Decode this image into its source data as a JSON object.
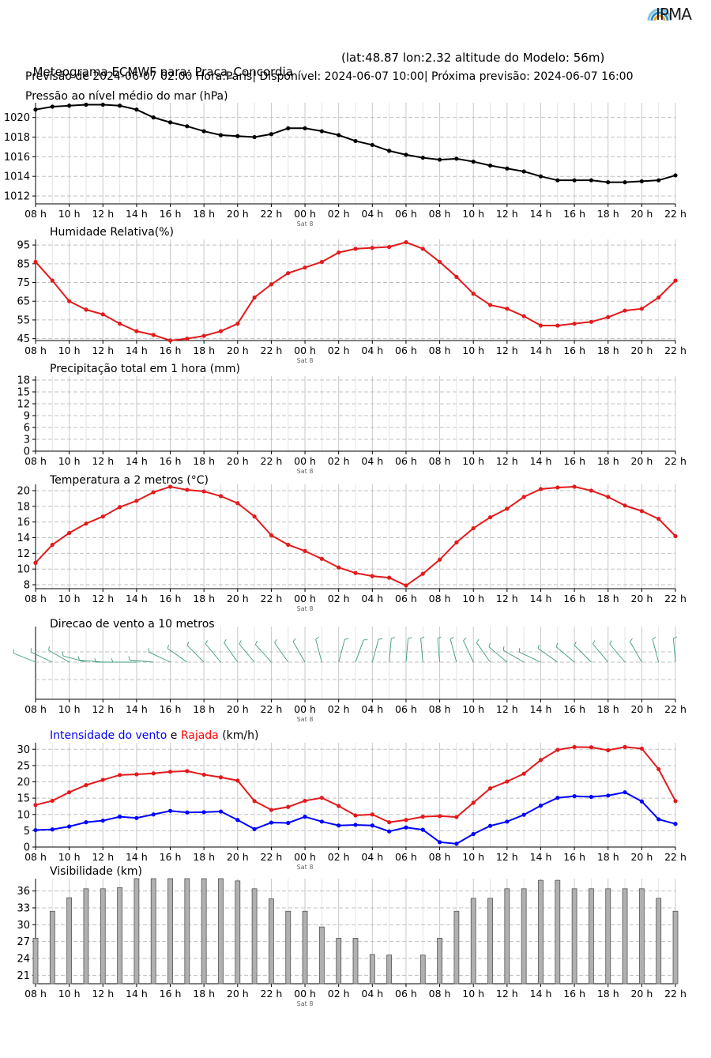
{
  "header": {
    "logo_text": "IPMA",
    "title": "Meteograma ECMWF para: Praca_Concordia",
    "coords": "(lat:48.87 lon:2.32 altitude do Modelo: 56m)",
    "subtitle": "Previsão de 2024-06-07 02:00 Hora:Paris| Disponível: 2024-06-07 10:00| Próxima previsão: 2024-06-07 16:00"
  },
  "time_axis": {
    "tick_labels": [
      "08 h",
      "10 h",
      "12 h",
      "14 h",
      "16 h",
      "18 h",
      "20 h",
      "22 h",
      "00 h",
      "02 h",
      "04 h",
      "06 h",
      "08 h",
      "10 h",
      "12 h",
      "14 h",
      "16 h",
      "18 h",
      "20 h",
      "22 h"
    ],
    "day_label": "Sat 8"
  },
  "chart_data": [
    {
      "id": "pressure",
      "type": "line",
      "title": "Pressão ao nível médio do mar (hPa)",
      "x": [
        0,
        1,
        2,
        3,
        4,
        5,
        6,
        7,
        8,
        9,
        10,
        11,
        12,
        13,
        14,
        15,
        16,
        17,
        18,
        19,
        20,
        21,
        22,
        23,
        24,
        25,
        26,
        27,
        28,
        29,
        30,
        31,
        32,
        33,
        34,
        35,
        36,
        37,
        38
      ],
      "yticks": [
        1012,
        1014,
        1016,
        1018,
        1020
      ],
      "ylim": [
        1011.2,
        1021.5
      ],
      "color": "#000000",
      "series": [
        {
          "values": [
            1020.8,
            1021.1,
            1021.2,
            1021.3,
            1021.3,
            1021.2,
            1020.8,
            1020.0,
            1019.5,
            1019.1,
            1018.6,
            1018.2,
            1018.1,
            1018.0,
            1018.3,
            1018.9,
            1018.9,
            1018.6,
            1018.2,
            1017.6,
            1017.2,
            1016.6,
            1016.2,
            1015.9,
            1015.7,
            1015.8,
            1015.5,
            1015.1,
            1014.8,
            1014.5,
            1014.0,
            1013.6,
            1013.6,
            1013.6,
            1013.4,
            1013.4,
            1013.5,
            1013.6,
            1014.1
          ]
        }
      ]
    },
    {
      "id": "humidity",
      "type": "line",
      "title": "Humidade Relativa(%)",
      "x": [
        0,
        1,
        2,
        3,
        4,
        5,
        6,
        7,
        8,
        9,
        10,
        11,
        12,
        13,
        14,
        15,
        16,
        17,
        18,
        19,
        20,
        21,
        22,
        23,
        24,
        25,
        26,
        27,
        28,
        29,
        30,
        31,
        32,
        33,
        34,
        35,
        36,
        37,
        38
      ],
      "yticks": [
        45,
        55,
        65,
        75,
        85,
        95
      ],
      "ylim": [
        44,
        98
      ],
      "color": "#e31a1c",
      "series": [
        {
          "values": [
            86,
            76,
            65,
            60.5,
            58,
            53,
            49,
            47,
            44,
            45,
            46.5,
            49,
            53,
            67,
            74,
            80,
            83,
            86,
            91,
            93,
            93.5,
            94,
            96.5,
            93,
            86,
            78,
            69,
            63,
            61,
            57,
            52,
            52,
            53,
            54,
            56.5,
            60,
            61,
            67,
            76
          ]
        }
      ]
    },
    {
      "id": "precip",
      "type": "bar",
      "title": "Precipitação total em 1 hora (mm)",
      "x": [
        0,
        1,
        2,
        3,
        4,
        5,
        6,
        7,
        8,
        9,
        10,
        11,
        12,
        13,
        14,
        15,
        16,
        17,
        18,
        19,
        20,
        21,
        22,
        23,
        24,
        25,
        26,
        27,
        28,
        29,
        30,
        31,
        32,
        33,
        34,
        35,
        36,
        37,
        38
      ],
      "yticks": [
        0,
        3,
        6,
        9,
        12,
        15,
        18
      ],
      "ylim": [
        0,
        19
      ],
      "color": "#1f78b4",
      "series": [
        {
          "values": [
            0,
            0,
            0,
            0,
            0,
            0,
            0,
            0,
            0,
            0,
            0,
            0,
            0,
            0,
            0,
            0,
            0,
            0,
            0,
            0,
            0,
            0,
            0,
            0,
            0,
            0,
            0,
            0,
            0,
            0,
            0,
            0,
            0,
            0,
            0,
            0,
            0,
            0,
            0
          ]
        }
      ]
    },
    {
      "id": "temperature",
      "type": "line",
      "title": "Temperatura a 2 metros (°C)",
      "x": [
        0,
        1,
        2,
        3,
        4,
        5,
        6,
        7,
        8,
        9,
        10,
        11,
        12,
        13,
        14,
        15,
        16,
        17,
        18,
        19,
        20,
        21,
        22,
        23,
        24,
        25,
        26,
        27,
        28,
        29,
        30,
        31,
        32,
        33,
        34,
        35,
        36,
        37,
        38
      ],
      "yticks": [
        8,
        10,
        12,
        14,
        16,
        18,
        20
      ],
      "ylim": [
        7.5,
        20.8
      ],
      "color": "#e31a1c",
      "series": [
        {
          "values": [
            10.8,
            13.1,
            14.6,
            15.8,
            16.7,
            17.9,
            18.7,
            19.8,
            20.5,
            20.1,
            19.9,
            19.3,
            18.4,
            16.7,
            14.3,
            13.1,
            12.3,
            11.3,
            10.2,
            9.5,
            9.1,
            8.9,
            7.9,
            9.4,
            11.2,
            13.4,
            15.2,
            16.6,
            17.7,
            19.2,
            20.2,
            20.4,
            20.5,
            20.0,
            19.2,
            18.1,
            17.4,
            16.4,
            14.2
          ]
        }
      ]
    },
    {
      "id": "wind_direction",
      "type": "scatter",
      "title": "Direcao de vento a 10 metros",
      "x": [
        0,
        1,
        2,
        3,
        4,
        5,
        6,
        7,
        8,
        9,
        10,
        11,
        12,
        13,
        14,
        15,
        16,
        17,
        18,
        19,
        20,
        21,
        22,
        23,
        24,
        25,
        26,
        27,
        28,
        29,
        30,
        31,
        32,
        33,
        34,
        35,
        36,
        37,
        38
      ],
      "color": "#3c9a7c",
      "series": [
        {
          "name": "direction_deg",
          "values": [
            292,
            295,
            300,
            285,
            275,
            270,
            270,
            275,
            295,
            305,
            315,
            320,
            325,
            320,
            318,
            325,
            330,
            345,
            15,
            20,
            15,
            5,
            5,
            355,
            355,
            345,
            335,
            325,
            310,
            300,
            295,
            305,
            310,
            315,
            320,
            320,
            330,
            345,
            355
          ]
        }
      ]
    },
    {
      "id": "wind",
      "type": "line",
      "title_parts": [
        {
          "text": "Intensidade do vento",
          "color": "#0000ff"
        },
        {
          "text": " e ",
          "color": "#000000"
        },
        {
          "text": "Rajada",
          "color": "#ff0000"
        },
        {
          "text": " (km/h)",
          "color": "#000000"
        }
      ],
      "x": [
        0,
        1,
        2,
        3,
        4,
        5,
        6,
        7,
        8,
        9,
        10,
        11,
        12,
        13,
        14,
        15,
        16,
        17,
        18,
        19,
        20,
        21,
        22,
        23,
        24,
        25,
        26,
        27,
        28,
        29,
        30,
        31,
        32,
        33,
        34,
        35,
        36,
        37,
        38
      ],
      "yticks": [
        0,
        5,
        10,
        15,
        20,
        25,
        30
      ],
      "ylim": [
        0,
        32
      ],
      "series": [
        {
          "color": "#0000ff",
          "values": [
            5.2,
            5.4,
            6.3,
            7.6,
            8.1,
            9.3,
            8.9,
            10.0,
            11.1,
            10.6,
            10.7,
            10.9,
            8.3,
            5.5,
            7.5,
            7.4,
            9.3,
            7.8,
            6.6,
            6.8,
            6.6,
            4.8,
            6.0,
            5.3,
            1.5,
            1.0,
            4.0,
            6.5,
            7.8,
            9.9,
            12.7,
            15.1,
            15.6,
            15.4,
            15.8,
            16.8,
            14.0,
            8.5,
            7.1
          ]
        },
        {
          "color": "#e31a1c",
          "values": [
            12.9,
            14.2,
            16.8,
            19.0,
            20.6,
            22.1,
            22.3,
            22.6,
            23.1,
            23.3,
            22.2,
            21.4,
            20.4,
            14.1,
            11.4,
            12.3,
            14.2,
            15.1,
            12.6,
            9.7,
            10.0,
            7.6,
            8.3,
            9.3,
            9.5,
            9.2,
            13.6,
            18.0,
            20.1,
            22.5,
            26.7,
            29.8,
            30.7,
            30.6,
            29.7,
            30.7,
            30.2,
            23.9,
            14.1
          ]
        }
      ]
    },
    {
      "id": "visibility",
      "type": "bar",
      "title": "Visibilidade  (km)",
      "x": [
        0,
        1,
        2,
        3,
        4,
        5,
        6,
        7,
        8,
        9,
        10,
        11,
        12,
        13,
        14,
        15,
        16,
        17,
        18,
        19,
        20,
        21,
        22,
        23,
        24,
        25,
        26,
        27,
        28,
        29,
        30,
        31,
        32,
        33,
        34,
        35,
        36,
        37,
        38
      ],
      "yticks": [
        21,
        24,
        27,
        30,
        33,
        36
      ],
      "ylim": [
        19.5,
        38.2
      ],
      "color": "#b0b0b0",
      "series": [
        {
          "values": [
            27.6,
            32.4,
            34.8,
            36.4,
            36.4,
            36.6,
            38.2,
            38.2,
            38.4,
            38.2,
            38.2,
            38.2,
            37.8,
            36.4,
            34.6,
            32.4,
            32.4,
            29.6,
            27.6,
            27.6,
            24.7,
            24.6,
            19.5,
            24.6,
            27.6,
            32.4,
            34.7,
            34.7,
            36.4,
            36.4,
            37.9,
            37.9,
            36.4,
            36.4,
            36.4,
            36.4,
            36.4,
            34.7,
            32.4
          ]
        }
      ]
    }
  ]
}
